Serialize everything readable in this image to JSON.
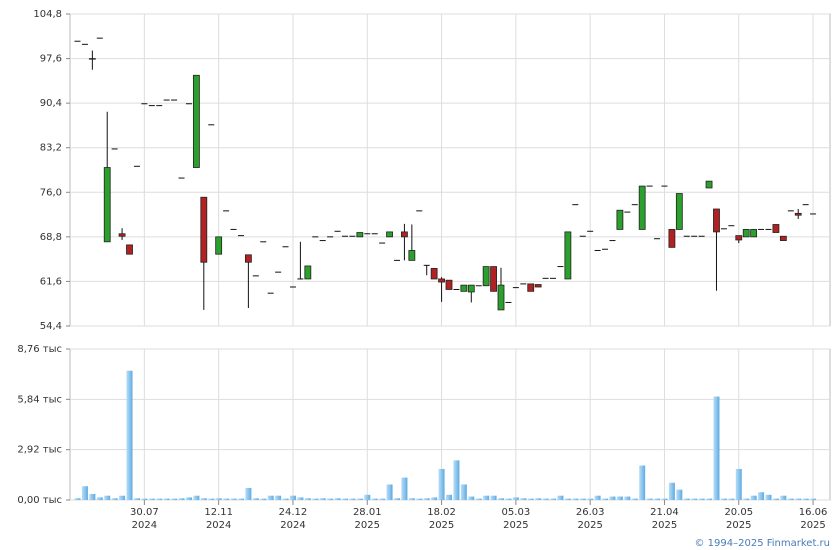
{
  "chart_data": {
    "type": "candlestick",
    "ylim": [
      54.4,
      104.8
    ],
    "yticks": [
      {
        "value": 54.4,
        "label": "54,4"
      },
      {
        "value": 61.6,
        "label": "61,6"
      },
      {
        "value": 68.8,
        "label": "68,8"
      },
      {
        "value": 76.0,
        "label": "76,0"
      },
      {
        "value": 83.2,
        "label": "83,2"
      },
      {
        "value": 90.4,
        "label": "90,4"
      },
      {
        "value": 97.6,
        "label": "97,6"
      },
      {
        "value": 104.8,
        "label": "104,8"
      }
    ],
    "volume_lim": [
      0,
      8.76
    ],
    "volume_ticks": [
      {
        "value": 0,
        "label": "0,00 тыс"
      },
      {
        "value": 2.92,
        "label": "2,92 тыс"
      },
      {
        "value": 5.84,
        "label": "5,84 тыс"
      },
      {
        "value": 8.76,
        "label": "8,76 тыс"
      }
    ],
    "xticks": [
      {
        "value": 9,
        "label": "30.07",
        "year": "2024"
      },
      {
        "value": 19,
        "label": "12.11",
        "year": "2024"
      },
      {
        "value": 29,
        "label": "24.12",
        "year": "2024"
      },
      {
        "value": 39,
        "label": "28.01",
        "year": "2025"
      },
      {
        "value": 49,
        "label": "18.02",
        "year": "2025"
      },
      {
        "value": 59,
        "label": "05.03",
        "year": "2025"
      },
      {
        "value": 69,
        "label": "26.03",
        "year": "2025"
      },
      {
        "value": 79,
        "label": "21.04",
        "year": "2025"
      },
      {
        "value": 89,
        "label": "20.05",
        "year": "2025"
      },
      {
        "value": 99,
        "label": "16.06",
        "year": "2025"
      }
    ],
    "up_color": "#2ca02c",
    "down_color": "#b22222",
    "volume_color": "#8cc6ef",
    "grid": true,
    "candles": [
      [
        100.4,
        100.4,
        100.4,
        100.4
      ],
      [
        99.9,
        99.9,
        99.9,
        99.9
      ],
      [
        97.6,
        98.9,
        95.8,
        97.5
      ],
      [
        100.9,
        100.9,
        100.9,
        100.9
      ],
      [
        68.0,
        89.0,
        68.0,
        80.0
      ],
      [
        83.0,
        83.0,
        83.0,
        83.0
      ],
      [
        69.3,
        70.2,
        68.3,
        68.9
      ],
      [
        67.5,
        67.5,
        66.0,
        66.0
      ],
      [
        80.2,
        80.2,
        80.2,
        80.2
      ],
      [
        90.3,
        90.3,
        90.3,
        90.3
      ],
      [
        90.0,
        90.0,
        90.0,
        90.0
      ],
      [
        90.0,
        90.0,
        90.0,
        90.0
      ],
      [
        90.9,
        90.9,
        90.9,
        90.9
      ],
      [
        90.9,
        90.9,
        90.9,
        90.9
      ],
      [
        78.3,
        78.3,
        78.3,
        78.3
      ],
      [
        90.3,
        90.3,
        90.3,
        90.3
      ],
      [
        80.0,
        94.9,
        80.0,
        94.9
      ],
      [
        75.2,
        75.2,
        57.0,
        64.7
      ],
      [
        86.9,
        86.9,
        86.9,
        86.9
      ],
      [
        66.0,
        68.8,
        66.0,
        68.8
      ],
      [
        73.0,
        73.0,
        73.0,
        73.0
      ],
      [
        70.0,
        70.0,
        70.0,
        70.0
      ],
      [
        69.0,
        69.0,
        69.0,
        69.0
      ],
      [
        65.9,
        65.9,
        57.3,
        64.7
      ],
      [
        62.5,
        62.5,
        62.5,
        62.5
      ],
      [
        68.0,
        68.0,
        68.0,
        68.0
      ],
      [
        59.7,
        59.7,
        59.7,
        59.7
      ],
      [
        63.1,
        63.1,
        63.1,
        63.1
      ],
      [
        67.2,
        67.2,
        67.2,
        67.2
      ],
      [
        60.7,
        60.7,
        60.7,
        60.7
      ],
      [
        62.0,
        68.0,
        62.0,
        62.0
      ],
      [
        62.0,
        64.1,
        62.0,
        64.1
      ],
      [
        68.8,
        68.8,
        68.8,
        68.8
      ],
      [
        68.2,
        68.2,
        68.2,
        68.2
      ],
      [
        68.8,
        68.8,
        68.8,
        68.8
      ],
      [
        69.7,
        69.7,
        69.7,
        69.7
      ],
      [
        68.9,
        68.9,
        68.9,
        68.9
      ],
      [
        68.9,
        68.9,
        68.9,
        68.9
      ],
      [
        68.8,
        69.5,
        68.8,
        69.5
      ],
      [
        69.3,
        69.3,
        69.3,
        69.3
      ],
      [
        69.3,
        69.3,
        69.3,
        69.3
      ],
      [
        67.8,
        67.8,
        67.8,
        67.8
      ],
      [
        68.8,
        69.6,
        68.8,
        69.6
      ],
      [
        65.0,
        65.0,
        65.0,
        65.0
      ],
      [
        69.6,
        70.9,
        65.0,
        68.8
      ],
      [
        65.0,
        70.8,
        65.0,
        66.6
      ],
      [
        73.0,
        73.0,
        73.0,
        73.0
      ],
      [
        64.2,
        64.2,
        62.6,
        64.2
      ],
      [
        63.7,
        63.7,
        62.0,
        62.0
      ],
      [
        62.0,
        62.3,
        58.3,
        61.5
      ],
      [
        61.8,
        61.8,
        60.3,
        60.3
      ],
      [
        60.3,
        60.3,
        60.3,
        60.3
      ],
      [
        60.0,
        61.0,
        60.0,
        61.0
      ],
      [
        59.9,
        61.0,
        58.2,
        61.0
      ],
      [
        60.9,
        60.9,
        60.9,
        60.9
      ],
      [
        60.9,
        64.0,
        60.9,
        64.0
      ],
      [
        64.0,
        64.0,
        60.0,
        60.0
      ],
      [
        57.0,
        63.8,
        57.0,
        61.0
      ],
      [
        58.2,
        58.2,
        58.2,
        58.2
      ],
      [
        60.6,
        60.6,
        60.6,
        60.6
      ],
      [
        61.2,
        61.2,
        61.2,
        61.2
      ],
      [
        61.2,
        61.2,
        60.0,
        60.0
      ],
      [
        61.1,
        61.1,
        60.7,
        60.7
      ],
      [
        62.1,
        62.1,
        62.1,
        62.1
      ],
      [
        62.1,
        62.1,
        62.1,
        62.1
      ],
      [
        64.0,
        64.0,
        64.0,
        64.0
      ],
      [
        62.0,
        69.6,
        62.0,
        69.6
      ],
      [
        74.0,
        74.0,
        74.0,
        74.0
      ],
      [
        68.9,
        68.9,
        68.9,
        68.9
      ],
      [
        69.7,
        69.7,
        69.7,
        69.7
      ],
      [
        66.6,
        66.6,
        66.6,
        66.6
      ],
      [
        66.8,
        66.8,
        66.8,
        66.8
      ],
      [
        68.2,
        68.2,
        68.2,
        68.2
      ],
      [
        70.0,
        73.1,
        70.0,
        73.1
      ],
      [
        72.8,
        72.8,
        72.8,
        72.8
      ],
      [
        74.0,
        74.0,
        74.0,
        74.0
      ],
      [
        70.0,
        77.0,
        70.0,
        77.0
      ],
      [
        77.0,
        77.0,
        77.0,
        77.0
      ],
      [
        68.5,
        68.5,
        68.5,
        68.5
      ],
      [
        77.0,
        77.0,
        77.0,
        77.0
      ],
      [
        70.0,
        70.0,
        67.1,
        67.1
      ],
      [
        70.0,
        75.8,
        70.0,
        75.8
      ],
      [
        68.9,
        68.9,
        68.9,
        68.9
      ],
      [
        68.9,
        68.9,
        68.9,
        68.9
      ],
      [
        68.9,
        68.9,
        68.9,
        68.9
      ],
      [
        76.7,
        77.8,
        76.7,
        77.8
      ],
      [
        73.3,
        73.3,
        60.1,
        69.6
      ],
      [
        70.1,
        70.1,
        70.1,
        70.1
      ],
      [
        70.6,
        70.6,
        70.6,
        70.6
      ],
      [
        69.0,
        69.0,
        67.8,
        68.3
      ],
      [
        68.8,
        70.0,
        68.8,
        70.0
      ],
      [
        68.8,
        70.0,
        68.8,
        70.0
      ],
      [
        70.0,
        70.0,
        70.0,
        70.0
      ],
      [
        70.0,
        70.0,
        70.0,
        70.0
      ],
      [
        70.8,
        70.8,
        69.5,
        69.5
      ],
      [
        68.9,
        68.9,
        68.2,
        68.2
      ],
      [
        73.0,
        73.0,
        73.0,
        73.0
      ],
      [
        72.6,
        73.3,
        71.7,
        72.3
      ],
      [
        74.0,
        74.0,
        74.0,
        74.0
      ],
      [
        72.5,
        72.5,
        72.5,
        72.5
      ]
    ],
    "volume": [
      0.1,
      0.8,
      0.35,
      0.15,
      0.25,
      0.1,
      0.25,
      7.5,
      0.1,
      0.08,
      0.08,
      0.08,
      0.08,
      0.08,
      0.1,
      0.15,
      0.25,
      0.1,
      0.08,
      0.1,
      0.08,
      0.08,
      0.08,
      0.7,
      0.1,
      0.08,
      0.25,
      0.25,
      0.08,
      0.25,
      0.15,
      0.1,
      0.08,
      0.1,
      0.08,
      0.1,
      0.08,
      0.08,
      0.08,
      0.3,
      0.08,
      0.08,
      0.9,
      0.1,
      1.3,
      0.1,
      0.08,
      0.1,
      0.15,
      1.8,
      0.3,
      2.3,
      0.9,
      0.2,
      0.08,
      0.25,
      0.25,
      0.1,
      0.08,
      0.15,
      0.1,
      0.08,
      0.1,
      0.08,
      0.08,
      0.25,
      0.08,
      0.08,
      0.08,
      0.08,
      0.25,
      0.08,
      0.2,
      0.2,
      0.2,
      0.08,
      2.0,
      0.08,
      0.08,
      0.08,
      1.0,
      0.6,
      0.08,
      0.08,
      0.08,
      0.08,
      6.0,
      0.08,
      0.08,
      1.8,
      0.08,
      0.25,
      0.45,
      0.3,
      0.08,
      0.25,
      0.08,
      0.08,
      0.08,
      0.08
    ],
    "credit": "© 1994–2025 Finmarket.ru"
  }
}
